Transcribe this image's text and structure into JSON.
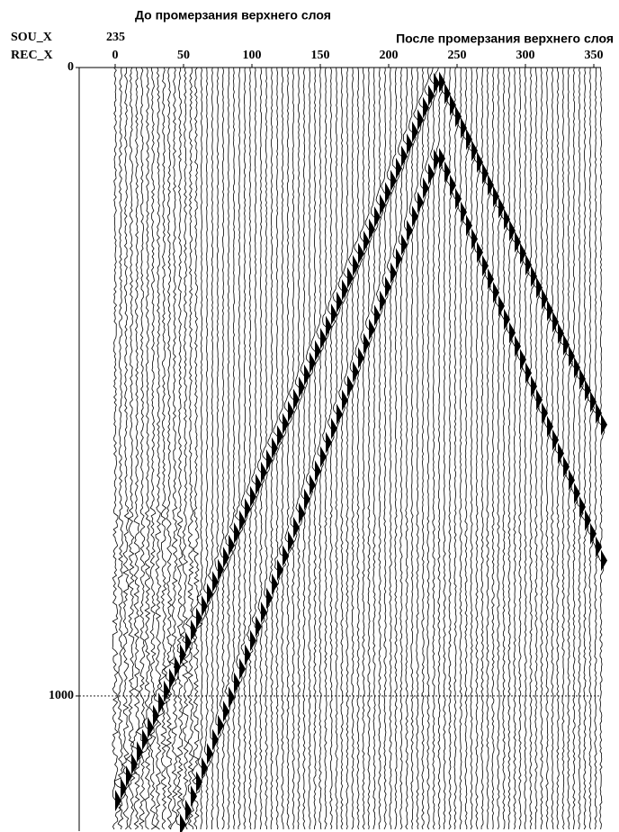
{
  "chart_data": {
    "type": "seismogram",
    "title": "До промерзания верхнего слоя",
    "subtitle": "После промерзания верхнего слоя",
    "header_labels": [
      "SOU_X",
      "REC_X"
    ],
    "sou_x": 235,
    "xlim": [
      0,
      350
    ],
    "xticks": [
      0,
      50,
      100,
      150,
      200,
      250,
      300,
      350
    ],
    "ylim": [
      0,
      1215
    ],
    "yticks": [
      0,
      1000
    ],
    "grid": true
  }
}
